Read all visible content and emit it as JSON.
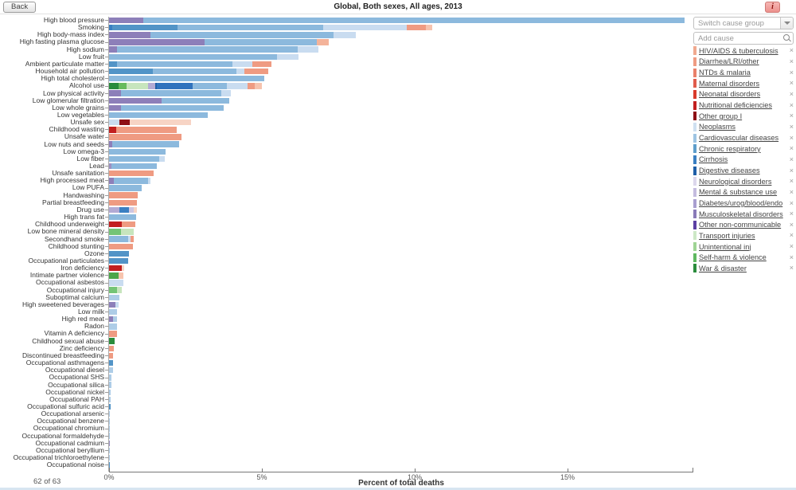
{
  "header": {
    "back_label": "Back",
    "title": "Global, Both sexes, All ages, 2013",
    "info_icon": "i"
  },
  "sidebar": {
    "switch_group_placeholder": "Switch cause group",
    "add_cause_placeholder": "Add cause",
    "remove_symbol": "×",
    "items": [
      {
        "label": "HIV/AIDS & tuberculosis",
        "color": "#f0a98f"
      },
      {
        "label": "Diarrhea/LRI/other",
        "color": "#ef9b82"
      },
      {
        "label": "NTDs & malaria",
        "color": "#e9806a"
      },
      {
        "label": "Maternal disorders",
        "color": "#e05c4c"
      },
      {
        "label": "Neonatal disorders",
        "color": "#d93a2b"
      },
      {
        "label": "Nutritional deficiencies",
        "color": "#c21f1f"
      },
      {
        "label": "Other group I",
        "color": "#8e0f15"
      },
      {
        "label": "Neoplasms",
        "color": "#cfe0f1"
      },
      {
        "label": "Cardiovascular diseases",
        "color": "#9ec4e3"
      },
      {
        "label": "Chronic respiratory",
        "color": "#5e9ecb"
      },
      {
        "label": "Cirrhosis",
        "color": "#3a7fc2"
      },
      {
        "label": "Digestive diseases",
        "color": "#1f5fa8"
      },
      {
        "label": "Neurological disorders",
        "color": "#dcd7ec"
      },
      {
        "label": "Mental & substance use",
        "color": "#c4bcdf"
      },
      {
        "label": "Diabetes/urog/blood/endo",
        "color": "#a99fd0"
      },
      {
        "label": "Musculoskeletal disorders",
        "color": "#8a7bb8"
      },
      {
        "label": "Other non-communicable",
        "color": "#5b3fa3"
      },
      {
        "label": "Transport injuries",
        "color": "#cde8c6"
      },
      {
        "label": "Unintentional inj",
        "color": "#9fd494"
      },
      {
        "label": "Self-harm & violence",
        "color": "#5fb860"
      },
      {
        "label": "War & disaster",
        "color": "#2a8c3c"
      }
    ]
  },
  "footer": {
    "count": "62 of 63"
  },
  "chart_data": {
    "type": "bar",
    "orientation": "horizontal-stacked",
    "title": "Global, Both sexes, All ages, 2013",
    "xlabel": "Percent of total deaths",
    "xlim": [
      0,
      19.1
    ],
    "x_ticks": [
      {
        "value": 0,
        "label": "0%"
      },
      {
        "value": 5,
        "label": "5%"
      },
      {
        "value": 10,
        "label": "10%"
      },
      {
        "value": 15,
        "label": "15%"
      }
    ],
    "legend_note": "segment colors = cause groups listed in sidebar",
    "rows": [
      {
        "label": "High blood pressure",
        "segments": [
          [
            "#8d7fb9",
            1.12
          ],
          [
            "#8cb9dd",
            17.7
          ]
        ]
      },
      {
        "label": "Smoking",
        "segments": [
          [
            "#3a7fc2",
            0.1
          ],
          [
            "#5294c7",
            2.14
          ],
          [
            "#8cb9dd",
            4.77
          ],
          [
            "#c9dcf0",
            2.73
          ],
          [
            "#ef9b82",
            0.63
          ],
          [
            "#f6c3ae",
            0.21
          ]
        ]
      },
      {
        "label": "High body-mass index",
        "segments": [
          [
            "#8d7fb9",
            1.35
          ],
          [
            "#8cb9dd",
            5.99
          ],
          [
            "#c9dcf0",
            0.73
          ]
        ]
      },
      {
        "label": "High fasting plasma glucose",
        "segments": [
          [
            "#8d7fb9",
            3.12
          ],
          [
            "#8cb9dd",
            3.67
          ],
          [
            "#f4b39a",
            0.39
          ]
        ]
      },
      {
        "label": "High sodium",
        "segments": [
          [
            "#8d7fb9",
            0.26
          ],
          [
            "#8cb9dd",
            5.91
          ],
          [
            "#c9dcf0",
            0.68
          ]
        ]
      },
      {
        "label": "Low fruit",
        "segments": [
          [
            "#8cb9dd",
            5.49
          ],
          [
            "#c9dcf0",
            0.7
          ]
        ]
      },
      {
        "label": "Ambient particulate matter",
        "segments": [
          [
            "#5294c7",
            0.26
          ],
          [
            "#8cb9dd",
            3.78
          ],
          [
            "#c9dcf0",
            0.65
          ],
          [
            "#ef9b82",
            0.63
          ]
        ]
      },
      {
        "label": "Household air pollution",
        "segments": [
          [
            "#5294c7",
            1.43
          ],
          [
            "#8cb9dd",
            2.73
          ],
          [
            "#c9dcf0",
            0.26
          ],
          [
            "#ef9b82",
            0.78
          ]
        ]
      },
      {
        "label": "High total cholesterol",
        "segments": [
          [
            "#8cb9dd",
            5.08
          ]
        ]
      },
      {
        "label": "Alcohol use",
        "segments": [
          [
            "#2a8c3c",
            0.31
          ],
          [
            "#68bb5e",
            0.26
          ],
          [
            "#c7e5bd",
            0.7
          ],
          [
            "#b3aad4",
            0.23
          ],
          [
            "#1f5fa8",
            0.06
          ],
          [
            "#3072bd",
            1.17
          ],
          [
            "#8cb9dd",
            1.12
          ],
          [
            "#c9dcf0",
            0.68
          ],
          [
            "#ef9b82",
            0.24
          ],
          [
            "#f6c3ae",
            0.23
          ]
        ]
      },
      {
        "label": "Low physical activity",
        "segments": [
          [
            "#8d7fb9",
            0.39
          ],
          [
            "#8cb9dd",
            3.28
          ],
          [
            "#c9dcf0",
            0.31
          ]
        ]
      },
      {
        "label": "Low glomerular filtration",
        "segments": [
          [
            "#8d7fb9",
            1.72
          ],
          [
            "#8cb9dd",
            2.21
          ]
        ]
      },
      {
        "label": "Low whole grains",
        "segments": [
          [
            "#8d7fb9",
            0.39
          ],
          [
            "#8cb9dd",
            3.36
          ]
        ]
      },
      {
        "label": "Low vegetables",
        "segments": [
          [
            "#8cb9dd",
            3.23
          ]
        ]
      },
      {
        "label": "Unsafe sex",
        "segments": [
          [
            "#c9dcf0",
            0.34
          ],
          [
            "#8e0f15",
            0.34
          ],
          [
            "#f7d4c5",
            2.0
          ]
        ]
      },
      {
        "label": "Childhood wasting",
        "segments": [
          [
            "#c21f1f",
            0.23
          ],
          [
            "#ef9b82",
            1.98
          ]
        ]
      },
      {
        "label": "Unsafe water",
        "segments": [
          [
            "#ef9b82",
            2.37
          ]
        ]
      },
      {
        "label": "Low nuts and seeds",
        "segments": [
          [
            "#8d7fb9",
            0.1
          ],
          [
            "#8cb9dd",
            2.2
          ]
        ]
      },
      {
        "label": "Low omega-3",
        "segments": [
          [
            "#8cb9dd",
            1.85
          ]
        ]
      },
      {
        "label": "Low fiber",
        "segments": [
          [
            "#8cb9dd",
            1.64
          ],
          [
            "#c9dcf0",
            0.18
          ]
        ]
      },
      {
        "label": "Lead",
        "segments": [
          [
            "#9b90c2",
            0.08
          ],
          [
            "#8cb9dd",
            1.48
          ]
        ]
      },
      {
        "label": "Unsafe sanitation",
        "segments": [
          [
            "#ef9b82",
            1.46
          ]
        ]
      },
      {
        "label": "High processed meat",
        "segments": [
          [
            "#8d7fb9",
            0.16
          ],
          [
            "#8cb9dd",
            1.12
          ],
          [
            "#c9dcf0",
            0.08
          ]
        ]
      },
      {
        "label": "Low PUFA",
        "segments": [
          [
            "#8cb9dd",
            1.07
          ]
        ]
      },
      {
        "label": "Handwashing",
        "segments": [
          [
            "#ef9b82",
            0.95
          ]
        ]
      },
      {
        "label": "Partial breastfeeding",
        "segments": [
          [
            "#ef9b82",
            0.91
          ]
        ]
      },
      {
        "label": "Drug use",
        "segments": [
          [
            "#b3aad4",
            0.33
          ],
          [
            "#3a7fc2",
            0.31
          ],
          [
            "#cdc6e2",
            0.17
          ],
          [
            "#f7d4c5",
            0.1
          ]
        ]
      },
      {
        "label": "High trans fat",
        "segments": [
          [
            "#8cb9dd",
            0.88
          ]
        ]
      },
      {
        "label": "Childhood underweight",
        "segments": [
          [
            "#c21f1f",
            0.42
          ],
          [
            "#ef9b82",
            0.44
          ]
        ]
      },
      {
        "label": "Low bone mineral density",
        "segments": [
          [
            "#74c476",
            0.4
          ],
          [
            "#c7e5bd",
            0.41
          ]
        ]
      },
      {
        "label": "Secondhand smoke",
        "segments": [
          [
            "#8cb9dd",
            0.62
          ],
          [
            "#c9dcf0",
            0.08
          ],
          [
            "#ef9b82",
            0.1
          ]
        ]
      },
      {
        "label": "Childhood stunting",
        "segments": [
          [
            "#ef9b82",
            0.78
          ]
        ]
      },
      {
        "label": "Ozone",
        "segments": [
          [
            "#5294c7",
            0.66
          ]
        ]
      },
      {
        "label": "Occupational particulates",
        "segments": [
          [
            "#5294c7",
            0.62
          ]
        ]
      },
      {
        "label": "Iron deficiency",
        "segments": [
          [
            "#c21f1f",
            0.42
          ],
          [
            "#f7d4c5",
            0.08
          ]
        ]
      },
      {
        "label": "Intimate partner violence",
        "segments": [
          [
            "#4ba648",
            0.32
          ],
          [
            "#f7c4ae",
            0.15
          ]
        ]
      },
      {
        "label": "Occupational asbestos",
        "segments": [
          [
            "#c9dcf0",
            0.46
          ]
        ]
      },
      {
        "label": "Occupational injury",
        "segments": [
          [
            "#74c476",
            0.26
          ],
          [
            "#c7e5bd",
            0.16
          ]
        ]
      },
      {
        "label": "Suboptimal calcium",
        "segments": [
          [
            "#aecde7",
            0.34
          ]
        ]
      },
      {
        "label": "High sweetened beverages",
        "segments": [
          [
            "#8d7fb9",
            0.21
          ],
          [
            "#c9dcf0",
            0.1
          ]
        ]
      },
      {
        "label": "Low milk",
        "segments": [
          [
            "#aecde7",
            0.26
          ]
        ]
      },
      {
        "label": "High red meat",
        "segments": [
          [
            "#8d7fb9",
            0.13
          ],
          [
            "#aecde7",
            0.13
          ]
        ]
      },
      {
        "label": "Radon",
        "segments": [
          [
            "#aecde7",
            0.25
          ]
        ]
      },
      {
        "label": "Vitamin A deficiency",
        "segments": [
          [
            "#ef9b82",
            0.25
          ]
        ]
      },
      {
        "label": "Childhood sexual abuse",
        "segments": [
          [
            "#2a8c3c",
            0.17
          ]
        ]
      },
      {
        "label": "Zinc deficiency",
        "segments": [
          [
            "#ef9b82",
            0.16
          ]
        ]
      },
      {
        "label": "Discontinued breastfeeding",
        "segments": [
          [
            "#ef9b82",
            0.14
          ]
        ]
      },
      {
        "label": "Occupational asthmagens",
        "segments": [
          [
            "#5294c7",
            0.14
          ]
        ]
      },
      {
        "label": "Occupational diesel",
        "segments": [
          [
            "#aecde7",
            0.12
          ]
        ]
      },
      {
        "label": "Occupational SHS",
        "segments": [
          [
            "#aecde7",
            0.08
          ]
        ]
      },
      {
        "label": "Occupational silica",
        "segments": [
          [
            "#aecde7",
            0.07
          ]
        ]
      },
      {
        "label": "Occupational nickel",
        "segments": [
          [
            "#aecde7",
            0.05
          ]
        ]
      },
      {
        "label": "Occupational PAH",
        "segments": [
          [
            "#aecde7",
            0.04
          ]
        ]
      },
      {
        "label": "Occupational sulfuric acid",
        "segments": [
          [
            "#5294c7",
            0.04
          ]
        ]
      },
      {
        "label": "Occupational arsenic",
        "segments": [
          [
            "#aecde7",
            0.03
          ]
        ]
      },
      {
        "label": "Occupational benzene",
        "segments": [
          [
            "#aecde7",
            0.03
          ]
        ]
      },
      {
        "label": "Occupational chromium",
        "segments": [
          [
            "#aecde7",
            0.03
          ]
        ]
      },
      {
        "label": "Occupational formaldehyde",
        "segments": [
          [
            "#aecde7",
            0.02
          ]
        ]
      },
      {
        "label": "Occupational cadmium",
        "segments": [
          [
            "#9b90c2",
            0.02
          ]
        ]
      },
      {
        "label": "Occupational beryllium",
        "segments": [
          [
            "#aecde7",
            0.02
          ]
        ]
      },
      {
        "label": "Occupational trichloroethylene",
        "segments": [
          [
            "#aecde7",
            0.01
          ]
        ]
      },
      {
        "label": "Occupational noise",
        "segments": [
          [
            "#5294c7",
            0.01
          ]
        ]
      }
    ]
  }
}
